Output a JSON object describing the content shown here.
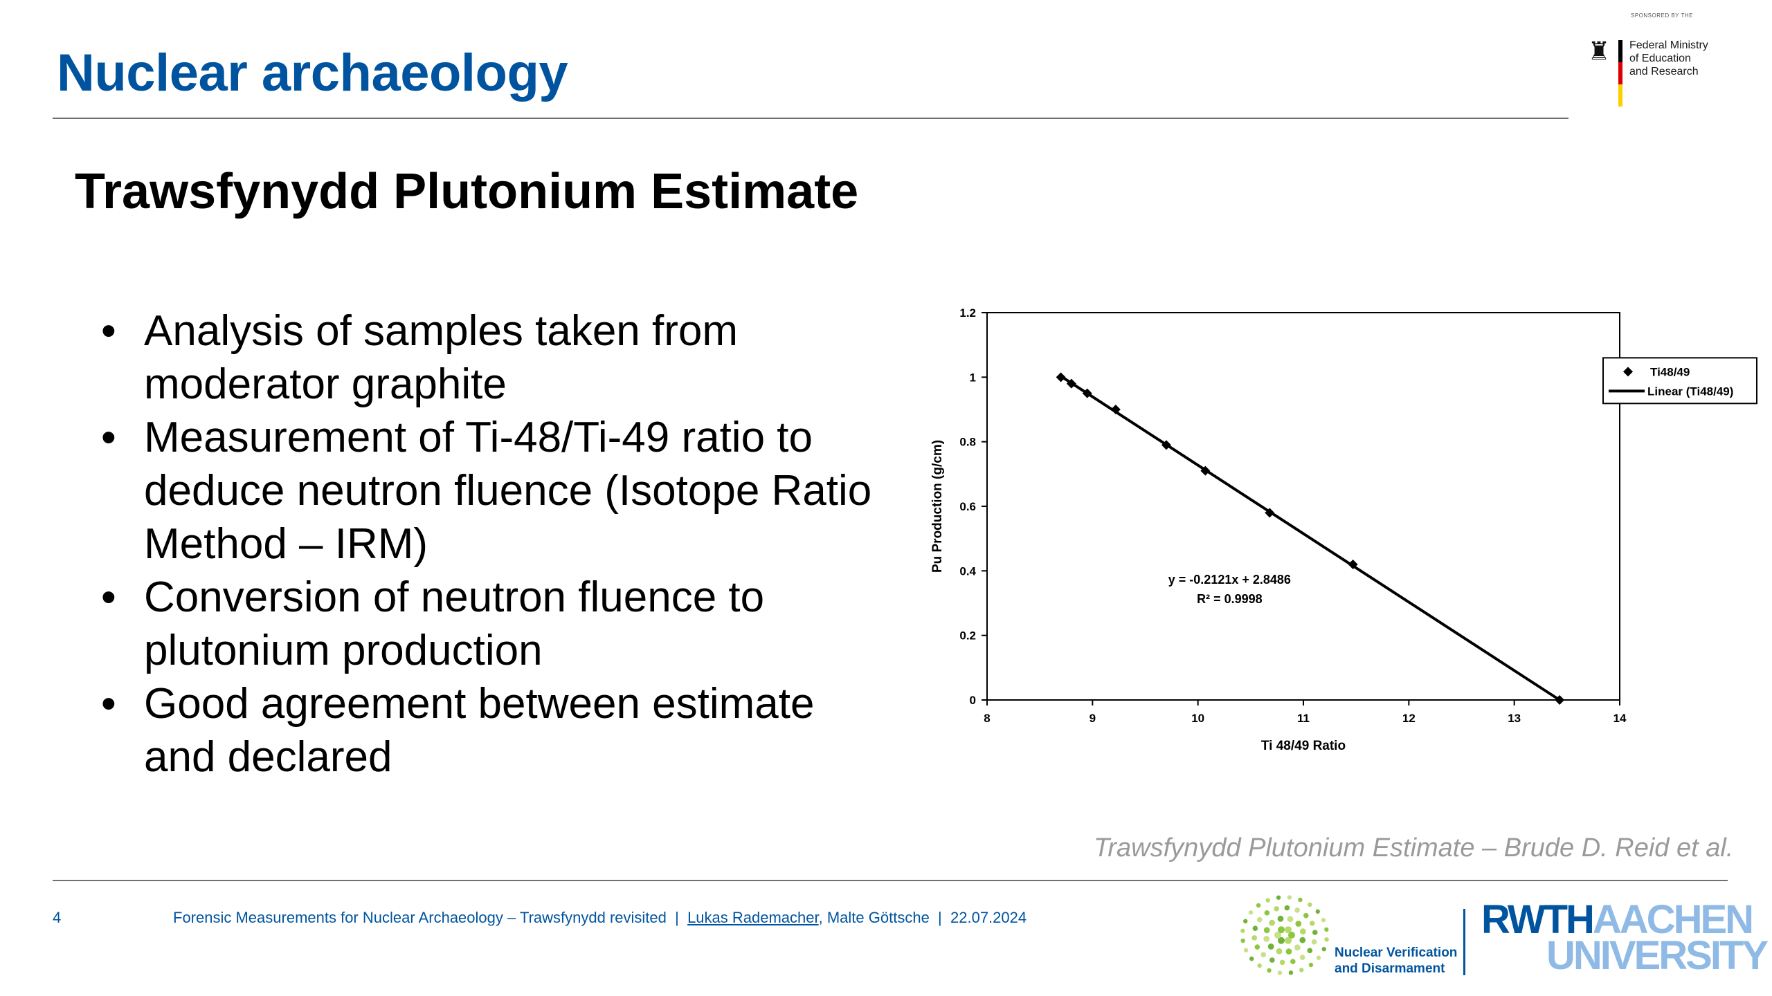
{
  "header": {
    "title": "Nuclear archaeology",
    "sponsor_label": "SPONSORED BY THE",
    "ministry_lines": [
      "Federal Ministry",
      "of Education",
      "and Research"
    ]
  },
  "subtitle": "Trawsfynydd Plutonium Estimate",
  "bullets": [
    [
      "Analysis of samples taken from",
      "moderator graphite"
    ],
    [
      "Measurement of Ti-48/Ti-49 ratio to",
      "deduce neutron fluence (Isotope Ratio",
      "Method – IRM)"
    ],
    [
      "Conversion of neutron fluence to",
      "plutonium production"
    ],
    [
      "Good agreement between estimate",
      "and declared"
    ]
  ],
  "chart_data": {
    "type": "scatter",
    "title": "",
    "xlabel": "Ti 48/49 Ratio",
    "ylabel": "Pu Production (g/cm)",
    "xlim": [
      8,
      14
    ],
    "ylim": [
      0,
      1.2
    ],
    "x_ticks": [
      "8",
      "9",
      "10",
      "11",
      "12",
      "13",
      "14"
    ],
    "y_ticks": [
      "0",
      "0.2",
      "0.4",
      "0.6",
      "0.8",
      "1",
      "1.2"
    ],
    "grid": false,
    "legend_position": "right",
    "series": [
      {
        "name": "Ti48/49",
        "kind": "points",
        "x": [
          8.7,
          8.8,
          8.95,
          9.22,
          9.7,
          10.07,
          10.68,
          11.47,
          13.43
        ],
        "y": [
          1.0,
          0.98,
          0.95,
          0.9,
          0.79,
          0.71,
          0.58,
          0.42,
          0.0
        ]
      },
      {
        "name": "Linear (Ti48/49)",
        "kind": "line",
        "x": [
          8.7,
          13.43
        ],
        "y": [
          1.003,
          0.0
        ]
      }
    ],
    "annotation": {
      "equation": "y = -0.2121x + 2.8486",
      "r_squared": "R² = 0.9998"
    },
    "colors": {
      "marker": "#000000",
      "line": "#000000",
      "axis": "#000000"
    }
  },
  "caption": "Trawsfynydd Plutonium Estimate – Brude D. Reid et al.",
  "footer": {
    "page_number": "4",
    "talk_title": "Forensic Measurements for Nuclear Archaeology – Trawsfynydd revisited",
    "separator": "|",
    "author_1": "Lukas Rademacher",
    "author_rest": ", Malte Göttsche",
    "date": "22.07.2024"
  },
  "logos": {
    "nvd_lines": [
      "Nuclear Verification",
      "and Disarmament"
    ],
    "rwth_part_1": "RWTH",
    "rwth_part_2": "AACHEN",
    "rwth_line_2": "UNIVERSITY"
  },
  "colors": {
    "title_blue": "#00549f",
    "light_blue": "#8ebae5",
    "caption_gray": "#9a9a9a",
    "nvd_green": "#8dc63f"
  }
}
